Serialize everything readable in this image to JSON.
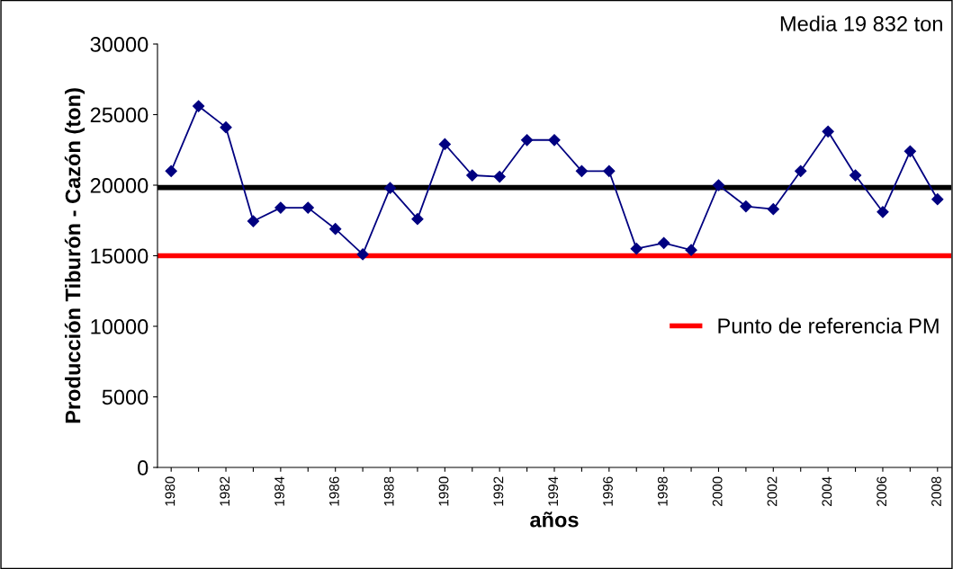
{
  "chart_data": {
    "type": "line",
    "xlabel": "años",
    "ylabel": "Producción Tiburón - Cazón (ton)",
    "categories": [
      "1980",
      null,
      "1982",
      null,
      "1984",
      null,
      "1986",
      null,
      "1988",
      null,
      "1990",
      null,
      "1992",
      null,
      "1994",
      null,
      "1996",
      null,
      "1998",
      null,
      "2000",
      null,
      "2002",
      null,
      "2004",
      null,
      "2006",
      null,
      "2008"
    ],
    "series": [
      {
        "color": "#000080",
        "values": [
          21000,
          25600,
          24100,
          17450,
          18400,
          18400,
          16900,
          15100,
          19800,
          17600,
          22900,
          20700,
          20600,
          23200,
          23200,
          21000,
          21000,
          15500,
          15900,
          15400,
          20000,
          18500,
          18300,
          21000,
          23800,
          20700,
          18100,
          22400,
          19000
        ]
      }
    ],
    "ylim": [
      0,
      30000
    ],
    "yticks": [
      0,
      5000,
      10000,
      15000,
      20000,
      25000,
      30000
    ],
    "ref_lines": [
      {
        "axis": "y",
        "value": 19832,
        "color": "#000000"
      },
      {
        "axis": "y",
        "value": 15000,
        "label": "Punto de referencia PM",
        "color": "#ff0000"
      }
    ],
    "annotations": [
      "Media 19 832 ton"
    ],
    "marker": "diamond",
    "grid": false,
    "legend": "right"
  }
}
